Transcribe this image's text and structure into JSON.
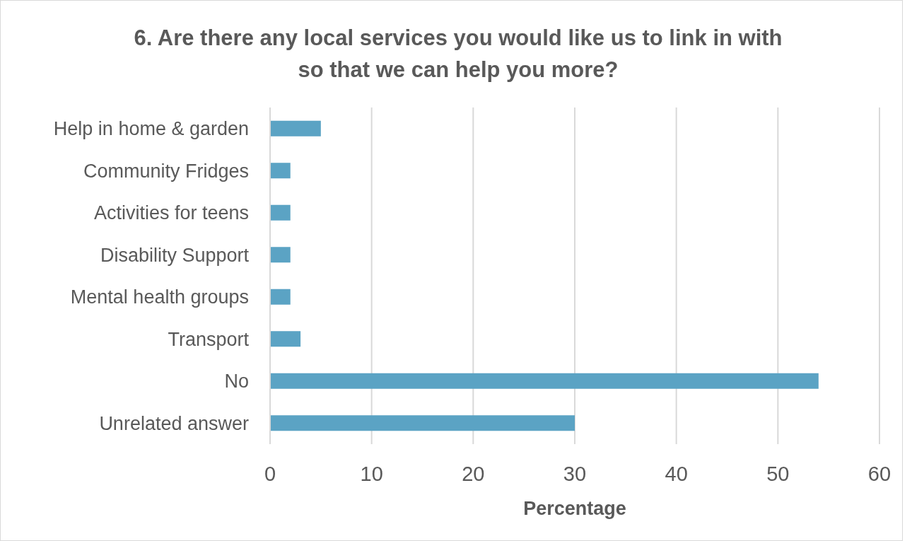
{
  "chart_data": {
    "type": "bar",
    "orientation": "horizontal",
    "title": "6. Are there any local services you would like us to link in with so that we can help you more?",
    "xlabel": "Percentage",
    "categories": [
      "Help in home & garden",
      "Community Fridges",
      "Activities for teens",
      "Disability Support",
      "Mental health groups",
      "Transport",
      "No",
      "Unrelated answer"
    ],
    "values": [
      5,
      2,
      2,
      2,
      2,
      3,
      54,
      30
    ],
    "color": "#5ba3c4",
    "xlim": [
      0,
      60
    ],
    "xticks": [
      0,
      10,
      20,
      30,
      40,
      50,
      60
    ],
    "grid": "x"
  }
}
